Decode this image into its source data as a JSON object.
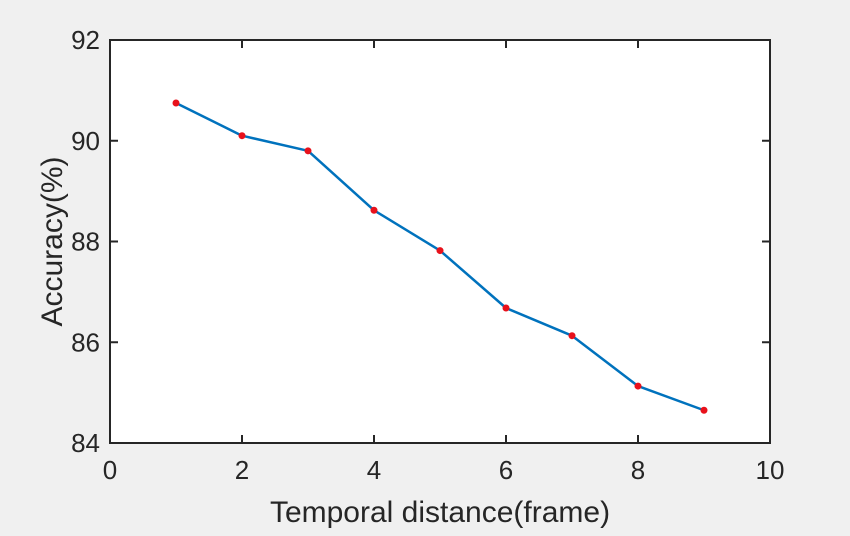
{
  "chart_data": {
    "type": "line",
    "title": "",
    "xlabel": "Temporal distance(frame)",
    "ylabel": "Accuracy(%)",
    "xlim": [
      0,
      10
    ],
    "ylim": [
      84,
      92
    ],
    "xticks": [
      0,
      2,
      4,
      6,
      8,
      10
    ],
    "yticks": [
      84,
      86,
      88,
      90,
      92
    ],
    "xtick_labels": [
      "0",
      "2",
      "4",
      "6",
      "8",
      "10"
    ],
    "ytick_labels": [
      "84",
      "86",
      "88",
      "90",
      "92"
    ],
    "grid": false,
    "legend": "none",
    "series": [
      {
        "x": [
          1,
          2,
          3,
          4,
          5,
          6,
          7,
          8,
          9
        ],
        "y": [
          90.75,
          90.1,
          89.8,
          88.62,
          87.82,
          86.68,
          86.13,
          85.13,
          84.65
        ],
        "line_color": "#0072bd",
        "marker_color": "#e8111b"
      }
    ]
  }
}
